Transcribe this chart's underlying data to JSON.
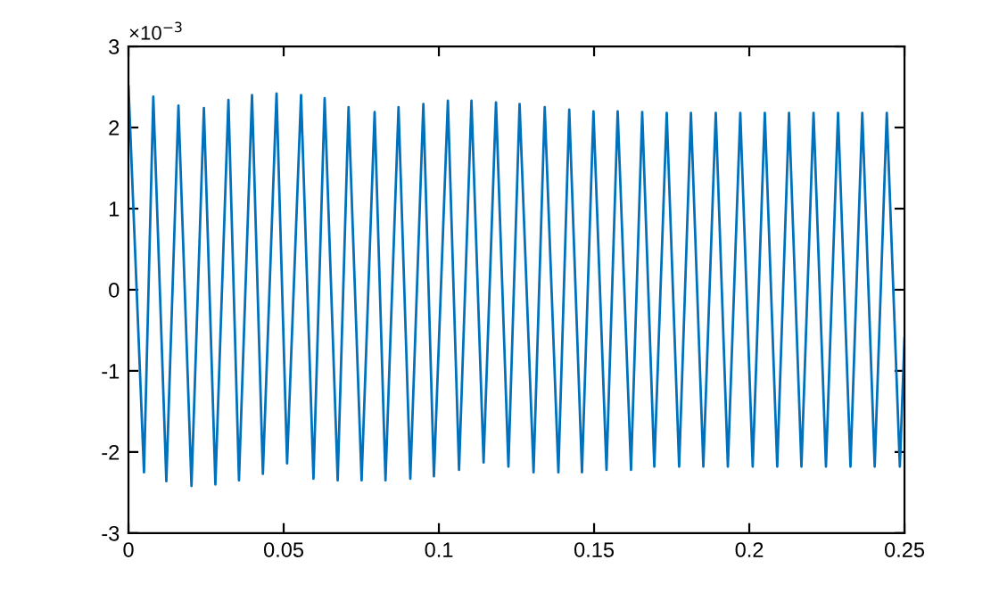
{
  "chart_data": {
    "type": "line",
    "x": [
      0,
      0.005,
      0.008,
      0.0122,
      0.0161,
      0.0203,
      0.0243,
      0.028,
      0.0322,
      0.0356,
      0.0398,
      0.0433,
      0.0477,
      0.0511,
      0.0556,
      0.0596,
      0.0632,
      0.0674,
      0.0709,
      0.0751,
      0.0793,
      0.0828,
      0.087,
      0.0908,
      0.095,
      0.0984,
      0.1029,
      0.1065,
      0.1105,
      0.1144,
      0.1184,
      0.1224,
      0.126,
      0.1305,
      0.1341,
      0.1385,
      0.142,
      0.1461,
      0.1498,
      0.154,
      0.1576,
      0.1619,
      0.1655,
      0.1694,
      0.1734,
      0.1774,
      0.1812,
      0.1852,
      0.1892,
      0.1931,
      0.1971,
      0.2011,
      0.205,
      0.209,
      0.2128,
      0.2168,
      0.2207,
      0.2247,
      0.2286,
      0.2326,
      0.2364,
      0.2404,
      0.2443,
      0.2485,
      0.25
    ],
    "series": [
      {
        "color": "#0072bd",
        "values": [
          2.51,
          -2.25,
          2.38,
          -2.36,
          2.27,
          -2.42,
          2.24,
          -2.4,
          2.34,
          -2.35,
          2.4,
          -2.27,
          2.42,
          -2.14,
          2.4,
          -2.33,
          2.36,
          -2.35,
          2.25,
          -2.35,
          2.19,
          -2.35,
          2.25,
          -2.33,
          2.29,
          -2.3,
          2.33,
          -2.22,
          2.33,
          -2.13,
          2.31,
          -2.18,
          2.29,
          -2.25,
          2.25,
          -2.25,
          2.22,
          -2.25,
          2.2,
          -2.22,
          2.2,
          -2.22,
          2.19,
          -2.18,
          2.18,
          -2.18,
          2.18,
          -2.18,
          2.18,
          -2.18,
          2.18,
          -2.18,
          2.18,
          -2.18,
          2.18,
          -2.18,
          2.18,
          -2.18,
          2.18,
          -2.18,
          2.18,
          -2.18,
          2.18,
          -2.18,
          -0.6
        ]
      }
    ],
    "xlim": [
      0,
      0.25
    ],
    "xticks": [
      0,
      0.05,
      0.1,
      0.15,
      0.2,
      0.25
    ],
    "ylim": [
      -3,
      3
    ],
    "yticks": [
      -3,
      -2,
      -1,
      0,
      1,
      2,
      3
    ],
    "annotations": [
      "×10$^{−3}$"
    ],
    "grid": false,
    "legend": false
  }
}
